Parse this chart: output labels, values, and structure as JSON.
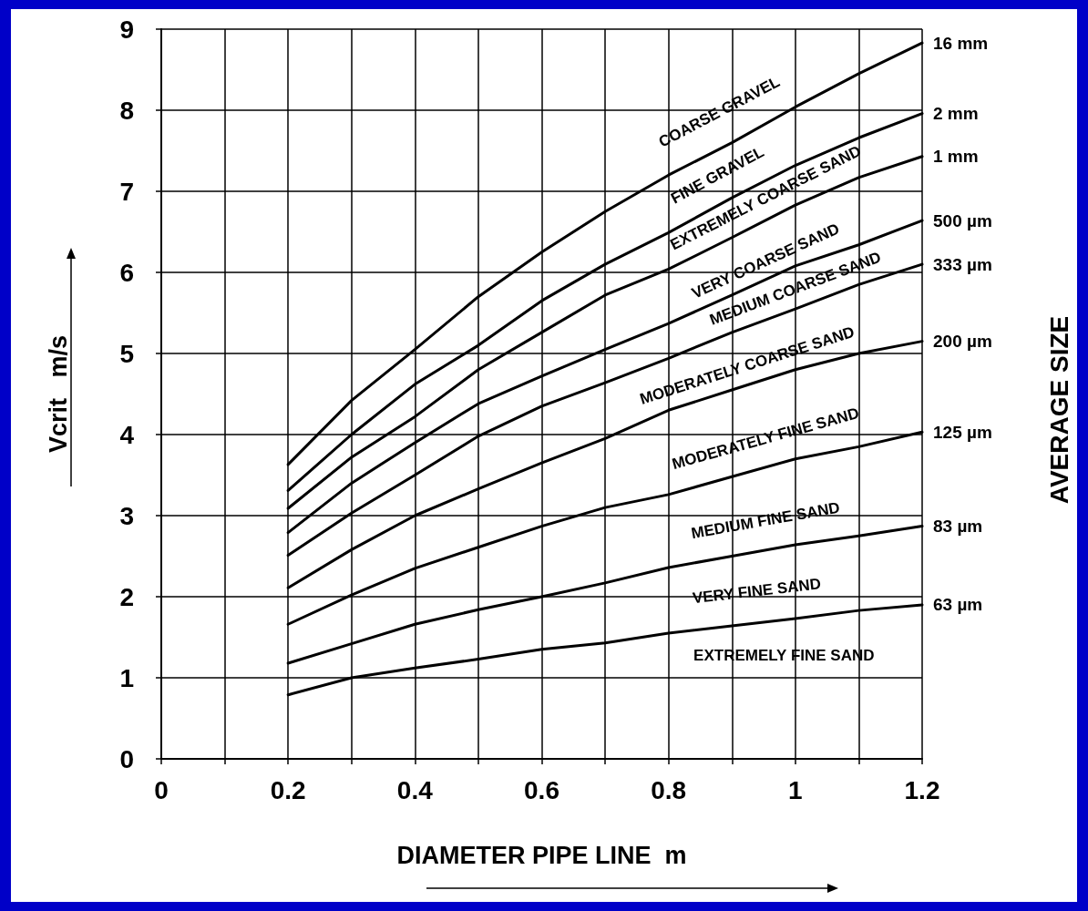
{
  "chart_data": {
    "type": "line",
    "xlabel": "DIAMETER PIPE LINE  m",
    "ylabel": "Vcrit   m/s",
    "x": [
      0.2,
      0.3,
      0.4,
      0.5,
      0.6,
      0.7,
      0.8,
      0.9,
      1.0,
      1.1,
      1.2
    ],
    "xlim": [
      0,
      1.2
    ],
    "xticks": [
      0,
      {
        "value": 0.1,
        "label": null
      },
      0.2,
      {
        "value": 0.3,
        "label": null
      },
      0.4,
      {
        "value": 0.5,
        "label": null
      },
      0.6,
      {
        "value": 0.7,
        "label": null
      },
      0.8,
      {
        "value": 0.9,
        "label": null
      },
      1,
      {
        "value": 1.1,
        "label": null
      },
      1.2
    ],
    "ylim": [
      0,
      9
    ],
    "yticks": [
      0,
      1,
      2,
      3,
      4,
      5,
      6,
      7,
      8,
      9
    ],
    "grid": true,
    "marker": "none",
    "line_style": "solid",
    "series": [
      {
        "name": "16 mm",
        "color": "#000000",
        "values": [
          3.63,
          4.42,
          5.05,
          5.7,
          6.25,
          6.75,
          7.2,
          7.6,
          8.04,
          8.45,
          8.83
        ]
      },
      {
        "name": "2 mm",
        "color": "#000000",
        "values": [
          3.31,
          4.0,
          4.62,
          5.1,
          5.65,
          6.1,
          6.49,
          6.92,
          7.32,
          7.66,
          7.96
        ]
      },
      {
        "name": "1 mm",
        "color": "#000000",
        "values": [
          3.09,
          3.72,
          4.22,
          4.8,
          5.26,
          5.72,
          6.04,
          6.43,
          6.83,
          7.17,
          7.43
        ]
      },
      {
        "name": "500 µm",
        "color": "#000000",
        "values": [
          2.79,
          3.4,
          3.9,
          4.38,
          4.72,
          5.05,
          5.37,
          5.72,
          6.08,
          6.34,
          6.64
        ]
      },
      {
        "name": "333 µm",
        "color": "#000000",
        "values": [
          2.51,
          3.03,
          3.5,
          3.98,
          4.35,
          4.64,
          4.94,
          5.26,
          5.55,
          5.85,
          6.1
        ]
      },
      {
        "name": "200 µm",
        "color": "#000000",
        "values": [
          2.11,
          2.58,
          3.0,
          3.33,
          3.65,
          3.95,
          4.3,
          4.55,
          4.8,
          5.0,
          5.15
        ]
      },
      {
        "name": "125 µm",
        "color": "#000000",
        "values": [
          1.66,
          2.02,
          2.35,
          2.61,
          2.87,
          3.1,
          3.26,
          3.48,
          3.7,
          3.85,
          4.03
        ]
      },
      {
        "name": "83 µm",
        "color": "#000000",
        "values": [
          1.18,
          1.42,
          1.66,
          1.84,
          2.0,
          2.17,
          2.36,
          2.5,
          2.64,
          2.75,
          2.87
        ]
      },
      {
        "name": "63 µm",
        "color": "#000000",
        "values": [
          0.79,
          1.0,
          1.12,
          1.23,
          1.35,
          1.43,
          1.55,
          1.64,
          1.73,
          1.83,
          1.9
        ]
      }
    ],
    "annotations": [
      "COARSE GRAVEL",
      "FINE GRAVEL",
      "EXTREMELY COARSE SAND",
      "VERY COARSE SAND",
      "MEDIUM COARSE SAND",
      "MODERATELY COARSE SAND",
      "MODERATELY FINE SAND",
      "MEDIUM FINE SAND",
      "VERY FINE SAND",
      "EXTREMELY FINE SAND",
      "AVERAGE SIZE"
    ]
  }
}
